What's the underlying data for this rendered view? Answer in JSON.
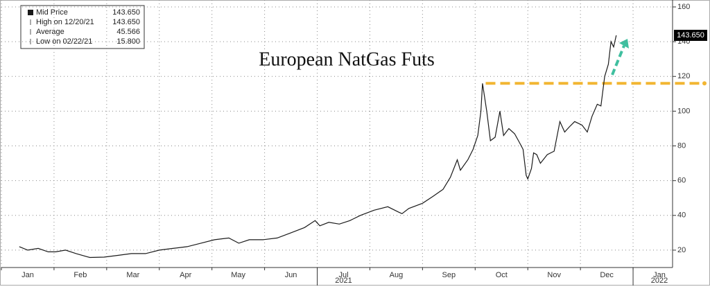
{
  "chart_data": {
    "type": "line",
    "title": "European NatGas Futs",
    "legend": [
      {
        "label": "Mid Price",
        "value": "143.650"
      },
      {
        "label": "High on 12/20/21",
        "value": "143.650"
      },
      {
        "label": "Average",
        "value": "45.566"
      },
      {
        "label": "Low on 02/22/21",
        "value": "15.800"
      }
    ],
    "last_value_label": "143.650",
    "x": [
      0.34,
      0.5,
      0.7,
      0.89,
      1.03,
      1.22,
      1.42,
      1.68,
      1.95,
      2.21,
      2.47,
      2.74,
      3.0,
      3.26,
      3.53,
      3.79,
      4.05,
      4.32,
      4.51,
      4.71,
      4.97,
      5.24,
      5.5,
      5.76,
      5.96,
      6.05,
      6.22,
      6.42,
      6.62,
      6.82,
      7.08,
      7.34,
      7.54,
      7.61,
      7.74,
      8.0,
      8.2,
      8.39,
      8.53,
      8.66,
      8.72,
      8.86,
      8.96,
      9.05,
      9.11,
      9.14,
      9.22,
      9.29,
      9.38,
      9.47,
      9.54,
      9.64,
      9.75,
      9.84,
      9.91,
      9.97,
      10.0,
      10.07,
      10.11,
      10.17,
      10.24,
      10.37,
      10.5,
      10.61,
      10.7,
      10.79,
      10.89,
      11.03,
      11.13,
      11.22,
      11.32,
      11.39,
      11.46,
      11.53,
      11.58,
      11.63,
      11.68
    ],
    "series": [
      {
        "name": "Mid Price",
        "color": "#1a1a1a",
        "values": [
          22,
          20,
          21,
          19,
          19,
          20,
          18,
          15.8,
          16,
          17,
          18,
          18,
          20,
          21,
          22,
          24,
          26,
          27,
          24,
          26,
          26,
          27,
          30,
          33,
          37,
          34,
          36,
          35,
          37,
          40,
          43,
          45,
          42,
          41,
          44,
          47,
          51,
          55,
          62,
          72,
          66,
          72,
          78,
          86,
          100,
          116,
          100,
          83,
          85,
          100,
          86,
          90,
          87,
          82,
          78,
          63,
          61,
          67,
          76,
          75,
          70,
          75,
          77,
          94,
          88,
          91,
          94,
          92,
          88,
          97,
          104,
          103,
          120,
          127,
          140,
          137,
          143.65
        ]
      }
    ],
    "reference_line": {
      "value": 116,
      "color": "#f2b632"
    },
    "xlim": [
      0,
      12.75
    ],
    "xticks": [
      {
        "value": 0,
        "label": "Jan"
      },
      {
        "value": 1,
        "label": "Feb"
      },
      {
        "value": 2,
        "label": "Mar"
      },
      {
        "value": 3,
        "label": "Apr"
      },
      {
        "value": 4,
        "label": "May"
      },
      {
        "value": 5,
        "label": "Jun"
      },
      {
        "value": 6,
        "label": "Jul"
      },
      {
        "value": 7,
        "label": "Aug"
      },
      {
        "value": 8,
        "label": "Sep"
      },
      {
        "value": 9,
        "label": "Oct"
      },
      {
        "value": 10,
        "label": "Nov"
      },
      {
        "value": 11,
        "label": "Dec"
      },
      {
        "value": 12,
        "label": "Jan"
      }
    ],
    "year_ticks": [
      {
        "value": 6,
        "label": "2021"
      },
      {
        "value": 12,
        "label": "2022"
      }
    ],
    "ylim": [
      10,
      160
    ],
    "yticks": [
      20,
      40,
      60,
      80,
      100,
      120,
      140,
      160
    ],
    "grid": true
  }
}
